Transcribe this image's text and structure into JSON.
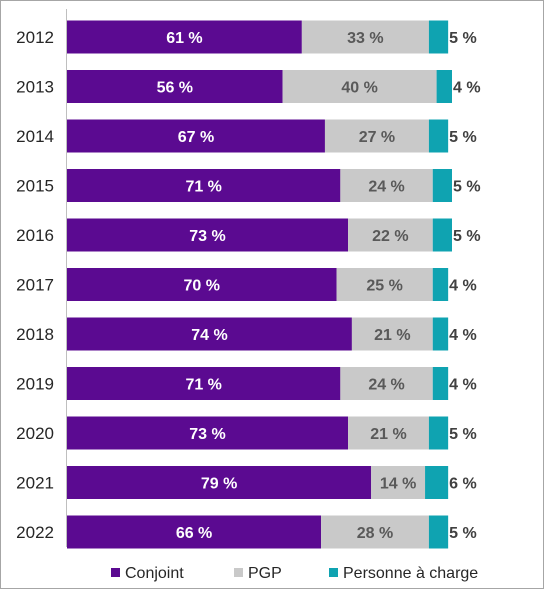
{
  "chart_data": {
    "type": "bar",
    "orientation": "horizontal",
    "stacked": true,
    "categories": [
      "2012",
      "2013",
      "2014",
      "2015",
      "2016",
      "2017",
      "2018",
      "2019",
      "2020",
      "2021",
      "2022"
    ],
    "series": [
      {
        "name": "Conjoint",
        "color": "#5b0a91",
        "values": [
          61,
          56,
          67,
          71,
          73,
          70,
          74,
          71,
          73,
          79,
          66
        ],
        "labels": [
          "61 %",
          "56 %",
          "67 %",
          "71 %",
          "73 %",
          "70 %",
          "74 %",
          "71 %",
          "73 %",
          "79 %",
          "66 %"
        ]
      },
      {
        "name": "PGP",
        "color": "#c9c9c9",
        "values": [
          33,
          40,
          27,
          24,
          22,
          25,
          21,
          24,
          21,
          14,
          28
        ],
        "labels": [
          "33 %",
          "40 %",
          "27 %",
          "24 %",
          "22 %",
          "25 %",
          "21 %",
          "24 %",
          "21 %",
          "14 %",
          "28 %"
        ]
      },
      {
        "name": "Personne à charge",
        "color": "#0fa3b1",
        "values": [
          5,
          4,
          5,
          5,
          5,
          4,
          4,
          4,
          5,
          6,
          5
        ],
        "labels": [
          "5 %",
          "4 %",
          "5 %",
          "5 %",
          "5 %",
          "4 %",
          "4 %",
          "4 %",
          "5 %",
          "6 %",
          "5 %"
        ]
      }
    ],
    "xlim": [
      0,
      100
    ],
    "grid": false,
    "legend_position": "bottom"
  }
}
